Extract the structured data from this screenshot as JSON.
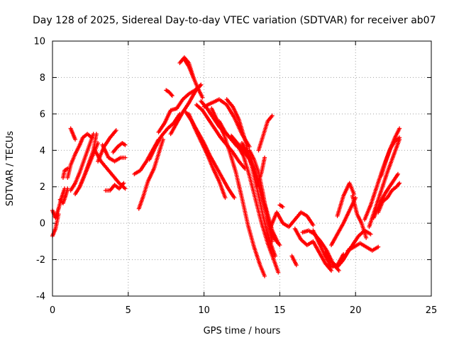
{
  "chart_data": {
    "type": "scatter",
    "title": "Day 128 of 2025, Sidereal Day-to-day VTEC variation (SDTVAR) for receiver ab07",
    "xlabel": "GPS time / hours",
    "ylabel": "SDTVAR / TECUs",
    "xlim": [
      0,
      25
    ],
    "ylim": [
      -4,
      10
    ],
    "xticks": [
      "0",
      "5",
      "10",
      "15",
      "20",
      "25"
    ],
    "yticks": [
      "-4",
      "-2",
      "0",
      "2",
      "4",
      "6",
      "8",
      "10"
    ],
    "grid": true,
    "marker": "+",
    "color": "#ff0000",
    "series": [
      {
        "x": [
          0.0,
          0.2,
          0.4,
          0.6,
          0.8
        ],
        "y": [
          0.7,
          0.3,
          0.8,
          1.4,
          1.9
        ]
      },
      {
        "x": [
          0.0,
          0.2,
          0.4
        ],
        "y": [
          -0.7,
          -0.3,
          0.5
        ]
      },
      {
        "x": [
          0.5,
          0.7,
          0.9,
          1.0
        ],
        "y": [
          1.3,
          1.1,
          1.6,
          1.9
        ]
      },
      {
        "x": [
          0.7,
          0.8,
          1.0
        ],
        "y": [
          2.5,
          2.9,
          3.0
        ]
      },
      {
        "x": [
          1.0,
          1.2,
          1.5,
          1.8,
          2.0,
          2.3,
          2.6
        ],
        "y": [
          2.5,
          3.2,
          3.8,
          4.3,
          4.7,
          4.9,
          4.7
        ]
      },
      {
        "x": [
          1.2,
          1.3,
          1.5
        ],
        "y": [
          5.2,
          5.0,
          4.6
        ]
      },
      {
        "x": [
          1.2,
          1.5,
          1.8,
          2.1,
          2.4,
          2.7
        ],
        "y": [
          1.8,
          2.2,
          2.8,
          3.5,
          4.2,
          4.9
        ]
      },
      {
        "x": [
          1.5,
          1.8,
          2.1,
          2.4,
          2.7,
          2.9
        ],
        "y": [
          1.6,
          2.0,
          2.6,
          3.3,
          4.0,
          4.9
        ]
      },
      {
        "x": [
          1.8,
          2.1,
          2.4,
          2.7,
          3.0
        ],
        "y": [
          2.0,
          2.6,
          3.2,
          3.8,
          4.4
        ]
      },
      {
        "x": [
          2.8,
          3.2,
          3.6,
          4.0,
          4.4,
          4.8
        ],
        "y": [
          4.0,
          3.4,
          3.0,
          2.6,
          2.2,
          1.9
        ]
      },
      {
        "x": [
          3.0,
          3.4,
          3.8,
          4.2
        ],
        "y": [
          3.4,
          4.2,
          4.7,
          5.1
        ]
      },
      {
        "x": [
          3.3,
          3.7,
          4.1,
          4.5,
          4.8
        ],
        "y": [
          4.3,
          3.6,
          3.4,
          3.6,
          3.6
        ]
      },
      {
        "x": [
          3.5,
          3.8,
          4.1,
          4.4,
          4.7
        ],
        "y": [
          1.8,
          1.8,
          2.1,
          1.9,
          2.2
        ]
      },
      {
        "x": [
          4.0,
          4.3,
          4.6,
          4.8
        ],
        "y": [
          3.9,
          4.2,
          4.4,
          4.3
        ]
      },
      {
        "x": [
          5.4,
          5.8,
          6.2,
          6.6,
          7.0
        ],
        "y": [
          2.7,
          2.9,
          3.4,
          4.0,
          4.6
        ]
      },
      {
        "x": [
          5.7,
          6.0,
          6.3,
          6.7,
          7.0,
          7.3
        ],
        "y": [
          0.8,
          1.5,
          2.3,
          3.0,
          3.8,
          4.6
        ]
      },
      {
        "x": [
          6.4,
          6.8,
          7.2,
          7.6,
          8.0,
          8.4
        ],
        "y": [
          3.5,
          4.2,
          4.8,
          5.2,
          5.5,
          6.0
        ]
      },
      {
        "x": [
          7.0,
          7.4,
          7.8,
          8.2
        ],
        "y": [
          5.0,
          5.5,
          6.2,
          6.3
        ]
      },
      {
        "x": [
          7.5,
          7.7,
          7.9
        ],
        "y": [
          7.3,
          7.2,
          7.0
        ]
      },
      {
        "x": [
          7.8,
          8.2,
          8.6,
          9.0,
          9.4,
          9.8
        ],
        "y": [
          4.9,
          5.5,
          6.1,
          6.6,
          7.2,
          7.6
        ]
      },
      {
        "x": [
          8.2,
          8.6,
          9.0,
          9.4,
          9.8
        ],
        "y": [
          6.3,
          6.8,
          7.1,
          7.3,
          7.6
        ]
      },
      {
        "x": [
          8.4,
          8.7,
          9.0,
          9.3
        ],
        "y": [
          8.8,
          9.1,
          8.8,
          8.0
        ]
      },
      {
        "x": [
          8.7,
          9.0,
          9.3,
          9.6,
          9.9
        ],
        "y": [
          9.0,
          8.6,
          8.0,
          7.4,
          6.9
        ]
      },
      {
        "x": [
          8.8,
          9.2,
          9.6,
          10.0,
          10.4,
          10.8,
          11.2,
          11.6,
          12.0
        ],
        "y": [
          6.1,
          5.6,
          5.0,
          4.4,
          3.7,
          3.1,
          2.5,
          1.9,
          1.4
        ]
      },
      {
        "x": [
          9.0,
          9.4,
          9.8,
          10.2,
          10.6,
          11.0,
          11.4
        ],
        "y": [
          6.0,
          5.2,
          4.5,
          3.8,
          3.0,
          2.3,
          1.4
        ]
      },
      {
        "x": [
          9.5,
          9.9,
          10.3,
          10.7,
          11.1,
          11.5,
          11.9,
          12.3,
          12.7
        ],
        "y": [
          6.5,
          6.2,
          5.7,
          5.2,
          4.7,
          4.3,
          3.9,
          3.4,
          3.0
        ]
      },
      {
        "x": [
          9.8,
          10.2,
          10.6,
          11.0,
          11.4,
          11.8,
          12.2,
          12.6
        ],
        "y": [
          6.7,
          6.3,
          5.8,
          5.3,
          5.0,
          4.6,
          4.2,
          4.1
        ]
      },
      {
        "x": [
          10.0,
          10.5,
          11.0,
          11.5,
          12.0,
          12.5,
          13.0
        ],
        "y": [
          6.4,
          6.6,
          6.8,
          6.5,
          5.8,
          4.9,
          4.2
        ]
      },
      {
        "x": [
          10.5,
          10.9,
          11.3,
          11.7,
          12.1,
          12.5,
          12.9,
          13.3,
          13.7,
          14.0
        ],
        "y": [
          6.3,
          5.6,
          4.9,
          3.9,
          2.8,
          1.4,
          -0.1,
          -1.3,
          -2.3,
          -2.9
        ]
      },
      {
        "x": [
          11.0,
          11.4,
          11.8,
          12.2,
          12.6,
          13.0,
          13.4,
          13.8,
          14.2,
          14.6,
          14.9
        ],
        "y": [
          5.6,
          5.0,
          4.6,
          4.3,
          3.7,
          2.6,
          1.3,
          0.0,
          -1.1,
          -2.0,
          -2.7
        ]
      },
      {
        "x": [
          11.5,
          11.9,
          12.3,
          12.7,
          13.1,
          13.5,
          13.9,
          14.3,
          14.7
        ],
        "y": [
          6.8,
          6.4,
          5.7,
          4.6,
          3.3,
          1.9,
          0.4,
          -0.9,
          -1.8
        ]
      },
      {
        "x": [
          11.8,
          12.2,
          12.6,
          13.0,
          13.4,
          13.8,
          14.2,
          14.6,
          15.0
        ],
        "y": [
          4.8,
          4.4,
          4.0,
          3.5,
          2.7,
          1.5,
          0.3,
          -0.8,
          -1.2
        ]
      },
      {
        "x": [
          12.5,
          12.9,
          13.3,
          13.7,
          14.1,
          14.5,
          14.9
        ],
        "y": [
          4.4,
          3.8,
          3.0,
          1.9,
          0.8,
          -0.4,
          -1.1
        ]
      },
      {
        "x": [
          13.0,
          13.3,
          13.6,
          13.9,
          14.2,
          14.5
        ],
        "y": [
          4.0,
          3.5,
          2.8,
          1.6,
          0.2,
          -1.0
        ]
      },
      {
        "x": [
          13.6,
          13.9,
          14.2,
          14.5
        ],
        "y": [
          4.0,
          4.8,
          5.6,
          5.9
        ]
      },
      {
        "x": [
          13.5,
          13.8,
          14.0
        ],
        "y": [
          2.0,
          2.8,
          3.6
        ]
      },
      {
        "x": [
          14.4,
          14.8,
          15.2,
          15.6,
          16.0,
          16.4,
          16.8,
          17.2
        ],
        "y": [
          -0.2,
          0.6,
          0.0,
          -0.2,
          0.2,
          0.6,
          0.4,
          -0.1
        ]
      },
      {
        "x": [
          15.0,
          15.2
        ],
        "y": [
          1.0,
          0.9
        ]
      },
      {
        "x": [
          15.8,
          16.1
        ],
        "y": [
          -1.8,
          -2.3
        ]
      },
      {
        "x": [
          16.0,
          16.4,
          16.8,
          17.2,
          17.6,
          18.0,
          18.4
        ],
        "y": [
          -0.3,
          -0.9,
          -1.2,
          -1.0,
          -1.6,
          -2.2,
          -2.6
        ]
      },
      {
        "x": [
          16.5,
          16.9,
          17.3,
          17.7,
          18.1,
          18.5,
          18.9
        ],
        "y": [
          -0.5,
          -0.4,
          -0.6,
          -1.0,
          -1.5,
          -2.2,
          -2.6
        ]
      },
      {
        "x": [
          17.2,
          17.6,
          18.0,
          18.4,
          18.8,
          19.2
        ],
        "y": [
          -0.4,
          -1.1,
          -1.8,
          -2.4,
          -2.3,
          -1.7
        ]
      },
      {
        "x": [
          18.0,
          18.4,
          18.8,
          19.2,
          19.6
        ],
        "y": [
          -1.6,
          -2.1,
          -2.4,
          -2.0,
          -1.4
        ]
      },
      {
        "x": [
          18.4,
          18.8,
          19.2,
          19.6,
          20.0
        ],
        "y": [
          -1.2,
          -0.6,
          0.0,
          0.7,
          1.4
        ]
      },
      {
        "x": [
          18.8,
          19.2,
          19.6,
          19.9
        ],
        "y": [
          0.4,
          1.5,
          2.2,
          1.6
        ]
      },
      {
        "x": [
          19.0,
          19.4,
          19.8,
          20.2,
          20.6,
          21.0
        ],
        "y": [
          -2.2,
          -1.7,
          -1.2,
          -0.7,
          -0.4,
          -0.6
        ]
      },
      {
        "x": [
          19.5,
          19.9,
          20.3,
          20.7,
          21.1,
          21.5
        ],
        "y": [
          -1.5,
          -1.3,
          -1.1,
          -1.3,
          -1.5,
          -1.3
        ]
      },
      {
        "x": [
          19.8,
          20.1,
          20.4,
          20.7
        ],
        "y": [
          1.5,
          0.5,
          0.0,
          -0.8
        ]
      },
      {
        "x": [
          20.6,
          21.0,
          21.4,
          21.8,
          22.2,
          22.6,
          22.9
        ],
        "y": [
          0.2,
          1.0,
          2.0,
          3.0,
          3.9,
          4.7,
          5.2
        ]
      },
      {
        "x": [
          20.9,
          21.3,
          21.7,
          22.1,
          22.5,
          22.9
        ],
        "y": [
          -0.2,
          0.8,
          1.8,
          2.8,
          3.7,
          4.6
        ]
      },
      {
        "x": [
          21.2,
          21.6,
          22.0,
          22.4,
          22.8
        ],
        "y": [
          0.3,
          1.1,
          1.7,
          2.2,
          2.7
        ]
      },
      {
        "x": [
          21.5,
          21.8,
          22.1,
          22.4,
          22.7,
          22.9
        ],
        "y": [
          0.6,
          1.2,
          1.4,
          1.8,
          2.0,
          2.2
        ]
      },
      {
        "x": [
          21.7,
          22.0,
          22.3,
          22.6,
          22.9
        ],
        "y": [
          2.6,
          3.4,
          4.1,
          4.5,
          4.7
        ]
      }
    ]
  }
}
